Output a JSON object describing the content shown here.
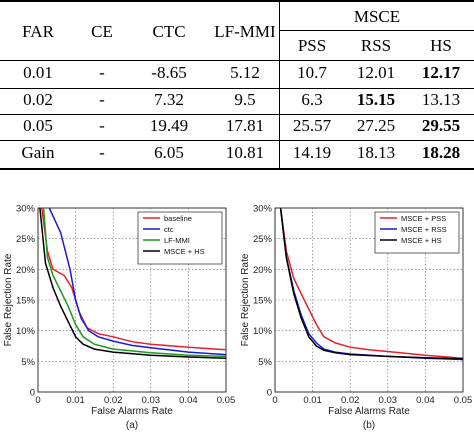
{
  "table": {
    "headers": {
      "far": "FAR",
      "ce": "CE",
      "ctc": "CTC",
      "lfmmi": "LF-MMI",
      "msce": "MSCE",
      "pss": "PSS",
      "rss": "RSS",
      "hs": "HS"
    },
    "rows": [
      {
        "far": "0.01",
        "ce": "-",
        "ctc": "-8.65",
        "lfmmi": "5.12",
        "pss": "10.7",
        "rss": "12.01",
        "hs": "12.17",
        "bold": "hs"
      },
      {
        "far": "0.02",
        "ce": "-",
        "ctc": "7.32",
        "lfmmi": "9.5",
        "pss": "6.3",
        "rss": "15.15",
        "hs": "13.13",
        "bold": "rss"
      },
      {
        "far": "0.05",
        "ce": "-",
        "ctc": "19.49",
        "lfmmi": "17.81",
        "pss": "25.57",
        "rss": "27.25",
        "hs": "29.55",
        "bold": "hs"
      },
      {
        "far": "Gain",
        "ce": "-",
        "ctc": "6.05",
        "lfmmi": "10.81",
        "pss": "14.19",
        "rss": "18.13",
        "hs": "18.28",
        "bold": "hs"
      }
    ]
  },
  "chart_data": [
    {
      "type": "line",
      "caption": "(a)",
      "xlabel": "False Alarms Rate",
      "ylabel": "False Rejection Rate",
      "xlim": [
        0,
        0.05
      ],
      "ylim": [
        0,
        30
      ],
      "xticks": [
        "0",
        "0.01",
        "0.02",
        "0.03",
        "0.04",
        "0.05"
      ],
      "yticks": [
        "0",
        "5%",
        "10%",
        "15%",
        "20%",
        "25%",
        "30%"
      ],
      "grid": true,
      "legend": "top-right",
      "series": [
        {
          "name": "baseline",
          "color": "#e8202a",
          "points": [
            [
              0.001,
              30
            ],
            [
              0.0025,
              23
            ],
            [
              0.004,
              20
            ],
            [
              0.007,
              19
            ],
            [
              0.009,
              17
            ],
            [
              0.011,
              13
            ],
            [
              0.013,
              10.5
            ],
            [
              0.016,
              9.5
            ],
            [
              0.02,
              9
            ],
            [
              0.025,
              8.2
            ],
            [
              0.03,
              7.8
            ],
            [
              0.04,
              7.3
            ],
            [
              0.05,
              6.9
            ]
          ]
        },
        {
          "name": "ctc",
          "color": "#1a1ad6",
          "points": [
            [
              0.003,
              30
            ],
            [
              0.006,
              26
            ],
            [
              0.0085,
              20
            ],
            [
              0.01,
              15
            ],
            [
              0.0115,
              12
            ],
            [
              0.0135,
              10
            ],
            [
              0.016,
              9
            ],
            [
              0.02,
              8.3
            ],
            [
              0.025,
              7.6
            ],
            [
              0.03,
              7.2
            ],
            [
              0.04,
              6.5
            ],
            [
              0.05,
              6.1
            ]
          ]
        },
        {
          "name": "LF-MMI",
          "color": "#1a9a1a",
          "points": [
            [
              0.0015,
              30
            ],
            [
              0.0025,
              22
            ],
            [
              0.004,
              19
            ],
            [
              0.006,
              16.5
            ],
            [
              0.008,
              14
            ],
            [
              0.01,
              11
            ],
            [
              0.012,
              9
            ],
            [
              0.015,
              7.8
            ],
            [
              0.02,
              7
            ],
            [
              0.03,
              6.4
            ],
            [
              0.04,
              6
            ],
            [
              0.05,
              5.8
            ]
          ]
        },
        {
          "name": "MSCE + HS",
          "color": "#000000",
          "points": [
            [
              0.0005,
              30
            ],
            [
              0.002,
              21
            ],
            [
              0.004,
              17
            ],
            [
              0.006,
              14
            ],
            [
              0.008,
              11.5
            ],
            [
              0.01,
              9
            ],
            [
              0.012,
              7.8
            ],
            [
              0.015,
              7
            ],
            [
              0.02,
              6.5
            ],
            [
              0.03,
              6
            ],
            [
              0.04,
              5.7
            ],
            [
              0.05,
              5.5
            ]
          ]
        }
      ]
    },
    {
      "type": "line",
      "caption": "(b)",
      "xlabel": "False Alarms Rate",
      "ylabel": "False Rejection Rate",
      "xlim": [
        0,
        0.05
      ],
      "ylim": [
        0,
        30
      ],
      "xticks": [
        "0",
        "0.01",
        "0.02",
        "0.03",
        "0.04",
        "0.05"
      ],
      "yticks": [
        "0",
        "5%",
        "10%",
        "15%",
        "20%",
        "25%",
        "30%"
      ],
      "grid": true,
      "legend": "top-right",
      "series": [
        {
          "name": "MSCE + PSS",
          "color": "#e8202a",
          "points": [
            [
              0.0015,
              30
            ],
            [
              0.003,
              23
            ],
            [
              0.005,
              18.5
            ],
            [
              0.007,
              16
            ],
            [
              0.009,
              13.5
            ],
            [
              0.011,
              11
            ],
            [
              0.013,
              9
            ],
            [
              0.016,
              8
            ],
            [
              0.02,
              7.3
            ],
            [
              0.025,
              6.9
            ],
            [
              0.03,
              6.6
            ],
            [
              0.04,
              6
            ],
            [
              0.05,
              5.5
            ]
          ]
        },
        {
          "name": "MSCE + RSS",
          "color": "#1a1ad6",
          "points": [
            [
              0.0015,
              30
            ],
            [
              0.003,
              22
            ],
            [
              0.005,
              16.5
            ],
            [
              0.007,
              12.5
            ],
            [
              0.009,
              9.5
            ],
            [
              0.011,
              8
            ],
            [
              0.013,
              7
            ],
            [
              0.016,
              6.5
            ],
            [
              0.02,
              6.2
            ],
            [
              0.03,
              5.8
            ],
            [
              0.04,
              5.5
            ],
            [
              0.05,
              5.3
            ]
          ]
        },
        {
          "name": "MSCE + HS",
          "color": "#000000",
          "points": [
            [
              0.0015,
              30
            ],
            [
              0.003,
              22
            ],
            [
              0.005,
              16
            ],
            [
              0.007,
              12
            ],
            [
              0.009,
              9
            ],
            [
              0.011,
              7.5
            ],
            [
              0.013,
              6.8
            ],
            [
              0.016,
              6.4
            ],
            [
              0.02,
              6.1
            ],
            [
              0.03,
              5.8
            ],
            [
              0.04,
              5.6
            ],
            [
              0.05,
              5.4
            ]
          ]
        }
      ]
    }
  ]
}
